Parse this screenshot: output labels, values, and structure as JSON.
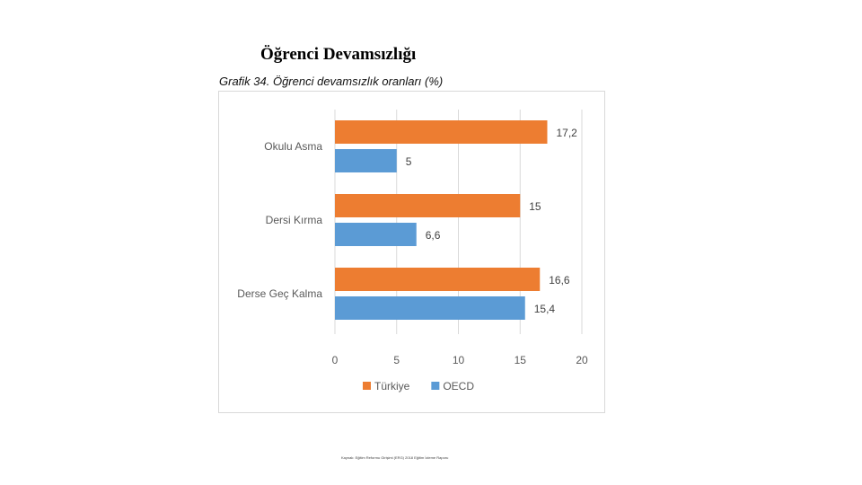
{
  "page": {
    "title": "Öğrenci Devamsızlığı",
    "footnote": "Kaynak: Eğitim Reformu Girişimi (ERG) 2018 Eğitim İzleme Raporu"
  },
  "chart_data": {
    "type": "bar",
    "orientation": "horizontal",
    "title": "Grafik 34. Öğrenci devamsızlık oranları (%)",
    "categories": [
      "Okulu Asma",
      "Dersi Kırma",
      "Derse Geç Kalma"
    ],
    "series": [
      {
        "name": "Türkiye",
        "color": "#ED7D31",
        "values": [
          17.2,
          15,
          16.6
        ],
        "labels": [
          "17,2",
          "15",
          "16,6"
        ]
      },
      {
        "name": "OECD",
        "color": "#5B9BD5",
        "values": [
          5,
          6.6,
          15.4
        ],
        "labels": [
          "5",
          "6,6",
          "15,4"
        ]
      }
    ],
    "xlim": [
      0,
      20
    ],
    "ticks": [
      "0",
      "5",
      "10",
      "15",
      "20"
    ],
    "tick_values": [
      0,
      5,
      10,
      15,
      20
    ],
    "grid": true,
    "legend": "bottom"
  }
}
